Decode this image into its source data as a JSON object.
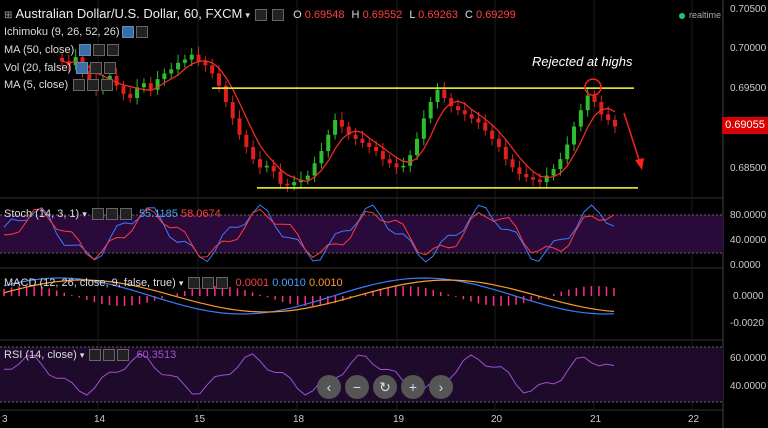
{
  "header": {
    "title": "Australian Dollar/U.S. Dollar, 60, FXCM",
    "ohlc": [
      {
        "k": "O",
        "v": "0.69548"
      },
      {
        "k": "H",
        "v": "0.69552"
      },
      {
        "k": "L",
        "v": "0.69263"
      },
      {
        "k": "C",
        "v": "0.69299"
      }
    ],
    "realtime": "realtime"
  },
  "overlays": [
    "Ichimoku (9, 26, 52, 26)",
    "MA (50, close)",
    "Vol (20, false)",
    "MA (5, close)"
  ],
  "price_pill": "0.69055",
  "annotation": "Rejected at highs",
  "stoch": {
    "label": "Stoch (14, 3, 1)",
    "k": "55.1185",
    "d": "58.0674"
  },
  "macd": {
    "label": "MACD (12, 26, close, 9, false, true)",
    "hist": "0.0001",
    "macd": "0.0010",
    "signal": "0.0010"
  },
  "rsi": {
    "label": "RSI (14, close)",
    "value": "60.3513"
  },
  "nav_buttons": [
    "‹",
    "−",
    "↻",
    "+",
    "›"
  ],
  "colors": {
    "up": "#2ebd2e",
    "down": "#e02020",
    "ma": "#ff2b2b",
    "level": "#ffff33",
    "stoch_k": "#3a7bff",
    "stoch_d": "#ff3b3b",
    "macd": "#3a7bff",
    "signal": "#ff9a2e",
    "rsi": "#a050d0"
  },
  "chart_data": {
    "type": "candlestick",
    "y_ticks": [
      "0.70500",
      "0.70000",
      "0.69500",
      "0.68500"
    ],
    "ylim": [
      0.6825,
      0.706
    ],
    "x_ticks": [
      "3",
      "14",
      "15",
      "18",
      "19",
      "20",
      "21",
      "22"
    ],
    "stoch_ticks": [
      "80.0000",
      "40.0000",
      "0.0000"
    ],
    "macd_ticks": [
      "0.0000",
      "-0.0020"
    ],
    "rsi_ticks": [
      "60.0000",
      "40.0000"
    ],
    "resistance": 0.6957,
    "support": 0.6835,
    "close_series": [
      0.699,
      0.6985,
      0.6995,
      0.6978,
      0.6965,
      0.6955,
      0.6968,
      0.6972,
      0.696,
      0.695,
      0.6945,
      0.6958,
      0.6963,
      0.6955,
      0.6968,
      0.6975,
      0.698,
      0.6988,
      0.6992,
      0.6998,
      0.699,
      0.6985,
      0.6975,
      0.696,
      0.694,
      0.692,
      0.69,
      0.6885,
      0.687,
      0.686,
      0.6862,
      0.6855,
      0.684,
      0.6838,
      0.6842,
      0.6845,
      0.685,
      0.6865,
      0.688,
      0.69,
      0.6918,
      0.691,
      0.69,
      0.6895,
      0.689,
      0.6885,
      0.688,
      0.687,
      0.6865,
      0.686,
      0.6862,
      0.6875,
      0.6895,
      0.692,
      0.694,
      0.6955,
      0.6945,
      0.6935,
      0.693,
      0.6925,
      0.692,
      0.6915,
      0.6905,
      0.6895,
      0.6885,
      0.687,
      0.686,
      0.6852,
      0.6848,
      0.6845,
      0.6842,
      0.685,
      0.6858,
      0.687,
      0.6888,
      0.691,
      0.693,
      0.6948,
      0.694,
      0.6925,
      0.6918,
      0.691
    ]
  }
}
